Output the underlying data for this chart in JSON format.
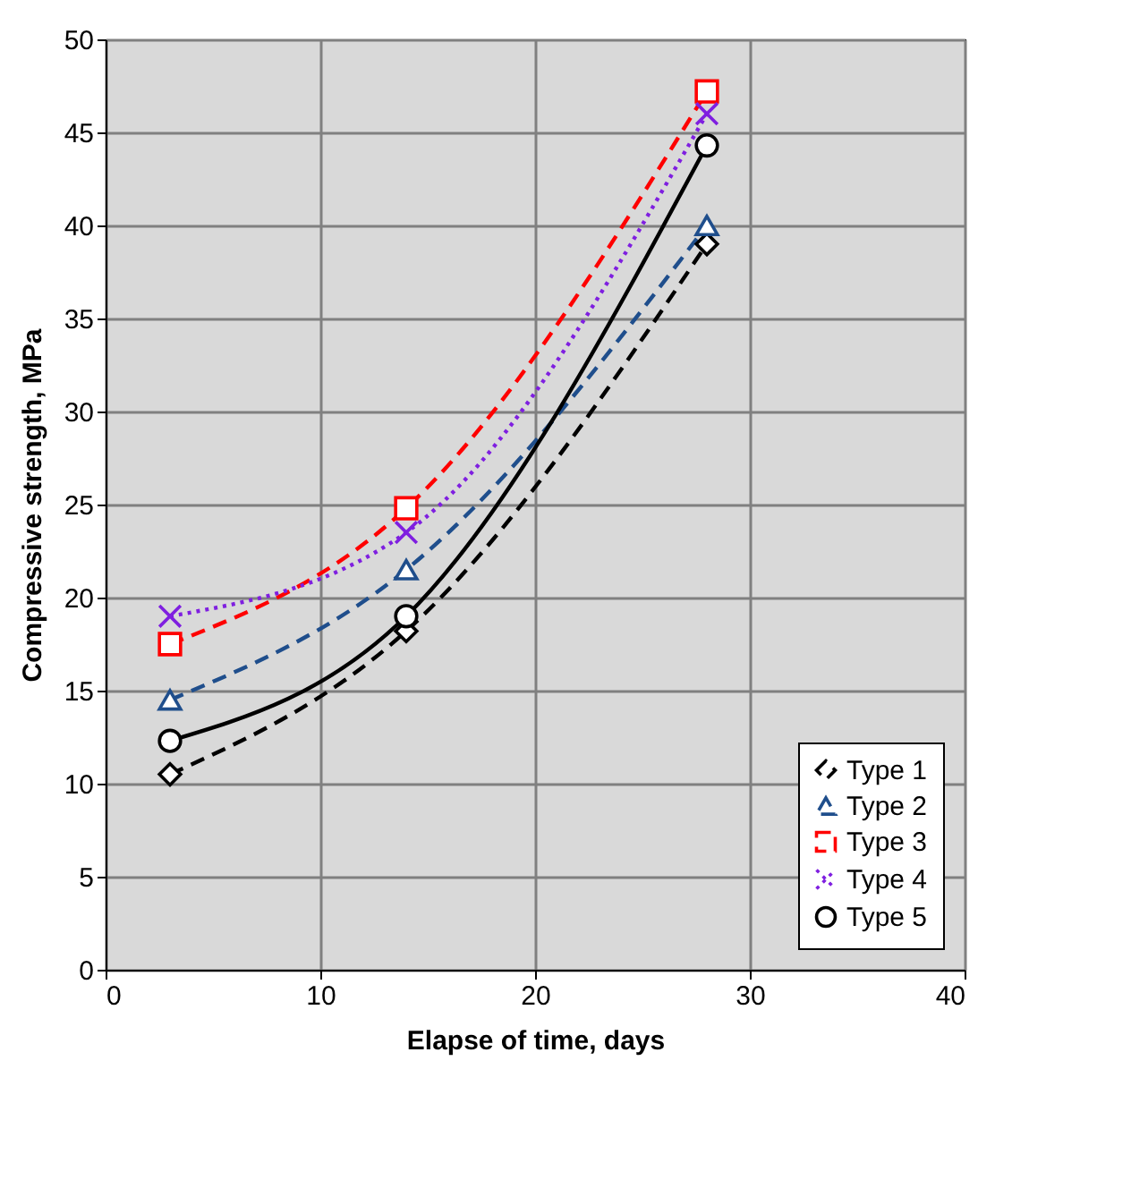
{
  "chart_data": {
    "type": "line",
    "xlabel": "Elapse of time, days",
    "ylabel": "Compressive  strength, MPa",
    "x": [
      3,
      14,
      28
    ],
    "series": [
      {
        "name": "Type 1",
        "color": "#000000",
        "values": [
          10.5,
          18.2,
          39.0
        ],
        "marker": "diamond",
        "line_style": "dashed"
      },
      {
        "name": "Type 2",
        "color": "#1f4e8c",
        "values": [
          14.5,
          21.5,
          40.0
        ],
        "marker": "triangle",
        "line_style": "dashed"
      },
      {
        "name": "Type 3",
        "color": "#ff0000",
        "values": [
          17.5,
          24.8,
          47.2
        ],
        "marker": "square",
        "line_style": "dashed"
      },
      {
        "name": "Type 4",
        "color": "#7f1fe0",
        "values": [
          19.0,
          23.5,
          46.0
        ],
        "marker": "cross",
        "line_style": "dotted"
      },
      {
        "name": "Type 5",
        "color": "#000000",
        "values": [
          12.3,
          19.0,
          44.3
        ],
        "marker": "circle",
        "line_style": "solid"
      }
    ],
    "xlim": [
      0,
      40
    ],
    "xticks": [
      0,
      10,
      20,
      30,
      40
    ],
    "ylim": [
      0,
      50
    ],
    "yticks": [
      0,
      5,
      10,
      15,
      20,
      25,
      30,
      35,
      40,
      45,
      50
    ],
    "grid": true,
    "legend": "bottom right"
  }
}
